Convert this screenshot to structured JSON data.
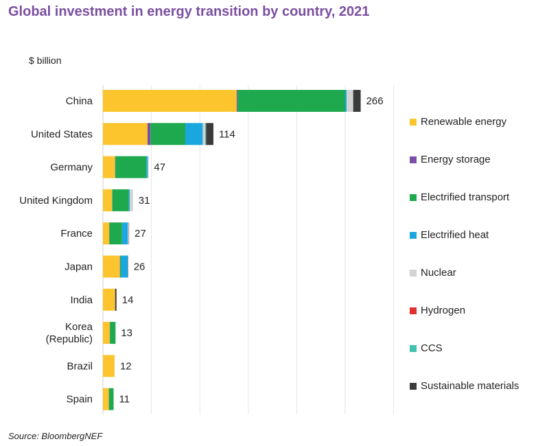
{
  "title": "Global investment in energy transition by country, 2021",
  "unit_label": "$ billion",
  "source": "Source: BloombergNEF",
  "chart_data": {
    "type": "bar",
    "orientation": "horizontal",
    "stacked": true,
    "title": "Global investment in energy transition by country, 2021",
    "xlabel": "$ billion",
    "ylabel": "",
    "xlim": [
      0,
      300
    ],
    "grid": true,
    "legend_position": "right",
    "categories": [
      "China",
      "United States",
      "Germany",
      "United Kingdom",
      "France",
      "Japan",
      "India",
      "Korea (Republic)",
      "Brazil",
      "Spain"
    ],
    "category_lines": [
      [
        "China"
      ],
      [
        "United States"
      ],
      [
        "Germany"
      ],
      [
        "United Kingdom"
      ],
      [
        "France"
      ],
      [
        "Japan"
      ],
      [
        "India"
      ],
      [
        "Korea",
        "(Republic)"
      ],
      [
        "Brazil"
      ],
      [
        "Spain"
      ]
    ],
    "totals": [
      266,
      114,
      47,
      31,
      27,
      26,
      14,
      13,
      12,
      11
    ],
    "total_labels": [
      "266",
      "114",
      "47",
      "31",
      "27",
      "26",
      "14",
      "13",
      "12",
      "11"
    ],
    "series": [
      {
        "name": "Renewable energy",
        "color": "#fcc52e",
        "values": [
          138,
          46,
          12.5,
          9.5,
          6.5,
          17.5,
          12.5,
          7,
          12,
          6
        ]
      },
      {
        "name": "Energy storage",
        "color": "#7b4fa5",
        "values": [
          1,
          3,
          0.3,
          0.2,
          0.2,
          0.2,
          0.1,
          0.2,
          0,
          0.2
        ]
      },
      {
        "name": "Electrified transport",
        "color": "#1fa94e",
        "values": [
          111,
          36,
          32,
          17,
          13,
          1,
          0,
          5.8,
          0,
          4.8
        ]
      },
      {
        "name": "Electrified heat",
        "color": "#1aa7e0",
        "values": [
          1.5,
          18,
          1.5,
          1,
          6,
          7,
          0,
          0,
          0,
          0
        ]
      },
      {
        "name": "Nuclear",
        "color": "#d3d3d3",
        "values": [
          6.5,
          2.5,
          0.5,
          3.3,
          1,
          0,
          0,
          0,
          0,
          0
        ]
      },
      {
        "name": "Hydrogen",
        "color": "#e0302f",
        "values": [
          0.2,
          0.2,
          0.1,
          0,
          0,
          0,
          0,
          0,
          0,
          0
        ]
      },
      {
        "name": "CCS",
        "color": "#3fc2b0",
        "values": [
          0.3,
          0.8,
          0.1,
          0,
          0,
          0,
          0,
          0,
          0,
          0
        ]
      },
      {
        "name": "Sustainable materials",
        "color": "#3b3b3b",
        "values": [
          7.5,
          7.5,
          0,
          0,
          0.3,
          0.3,
          1.4,
          0,
          0,
          0
        ]
      }
    ]
  }
}
